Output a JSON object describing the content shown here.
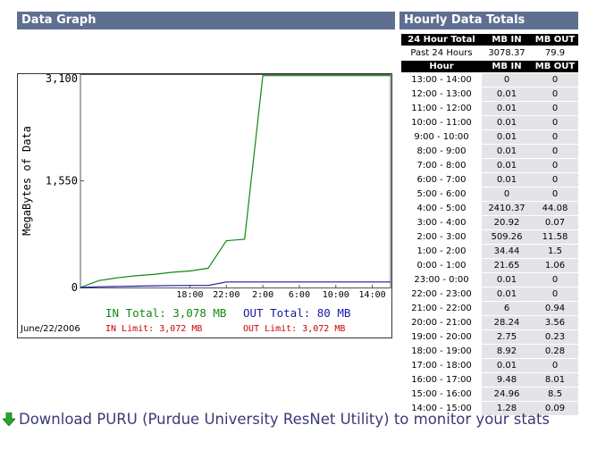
{
  "graph": {
    "title": "Data Graph",
    "in_total": "IN Total: 3,078 MB",
    "out_total": "OUT Total: 80 MB",
    "in_limit": "IN Limit: 3,072 MB",
    "out_limit": "OUT Limit: 3,072 MB",
    "date": "June/22/2006",
    "colors": {
      "in": "#118811",
      "out": "#1a1aa8",
      "limit": "#cc0000"
    }
  },
  "chart_data": {
    "type": "line",
    "ylabel": "MegaBytes of Data",
    "y_ticks": [
      "3,100",
      "1,550",
      "0"
    ],
    "x_ticks": [
      "18:00",
      "22:00",
      "2:00",
      "6:00",
      "10:00",
      "14:00"
    ],
    "ylim": [
      0,
      3100
    ],
    "x_hours": [
      -10,
      -8,
      -6,
      -4,
      -2,
      0,
      2,
      4,
      6,
      8,
      10,
      12,
      14,
      16,
      18,
      20,
      22,
      24
    ],
    "series": [
      {
        "key": "in",
        "values": [
          0,
          100,
          140,
          170,
          190,
          220,
          240,
          280,
          680,
          700,
          3078,
          3078,
          3078,
          3078,
          3078,
          3078,
          3078,
          3078
        ]
      },
      {
        "key": "out",
        "values": [
          0,
          10,
          15,
          20,
          25,
          28,
          30,
          30,
          80,
          80,
          80,
          80,
          80,
          80,
          80,
          80,
          80,
          80
        ]
      }
    ]
  },
  "totals": {
    "title": "Hourly Data Totals",
    "header": [
      "24 Hour Total",
      "MB IN",
      "MB OUT"
    ],
    "summary": [
      "Past 24 Hours",
      "3078.37",
      "79.9"
    ],
    "hour_header": [
      "Hour",
      "MB IN",
      "MB OUT"
    ],
    "rows": [
      [
        "13:00 - 14:00",
        "0",
        "0"
      ],
      [
        "12:00 - 13:00",
        "0.01",
        "0"
      ],
      [
        "11:00 - 12:00",
        "0.01",
        "0"
      ],
      [
        "10:00 - 11:00",
        "0.01",
        "0"
      ],
      [
        "9:00 - 10:00",
        "0.01",
        "0"
      ],
      [
        "8:00 - 9:00",
        "0.01",
        "0"
      ],
      [
        "7:00 - 8:00",
        "0.01",
        "0"
      ],
      [
        "6:00 - 7:00",
        "0.01",
        "0"
      ],
      [
        "5:00 - 6:00",
        "0",
        "0"
      ],
      [
        "4:00 - 5:00",
        "2410.37",
        "44.08"
      ],
      [
        "3:00 - 4:00",
        "20.92",
        "0.07"
      ],
      [
        "2:00 - 3:00",
        "509.26",
        "11.58"
      ],
      [
        "1:00 - 2:00",
        "34.44",
        "1.5"
      ],
      [
        "0:00 - 1:00",
        "21.65",
        "1.06"
      ],
      [
        "23:00 - 0:00",
        "0.01",
        "0"
      ],
      [
        "22:00 - 23:00",
        "0.01",
        "0"
      ],
      [
        "21:00 - 22:00",
        "6",
        "0.94"
      ],
      [
        "20:00 - 21:00",
        "28.24",
        "3.56"
      ],
      [
        "19:00 - 20:00",
        "2.75",
        "0.23"
      ],
      [
        "18:00 - 19:00",
        "8.92",
        "0.28"
      ],
      [
        "17:00 - 18:00",
        "0.01",
        "0"
      ],
      [
        "16:00 - 17:00",
        "9.48",
        "8.01"
      ],
      [
        "15:00 - 16:00",
        "24.96",
        "8.5"
      ],
      [
        "14:00 - 15:00",
        "1.28",
        "0.09"
      ]
    ]
  },
  "footer": {
    "download_text": "Download PURU (Purdue University ResNet Utility) to monitor your stats",
    "download_icon": "green-down-arrow-icon"
  }
}
